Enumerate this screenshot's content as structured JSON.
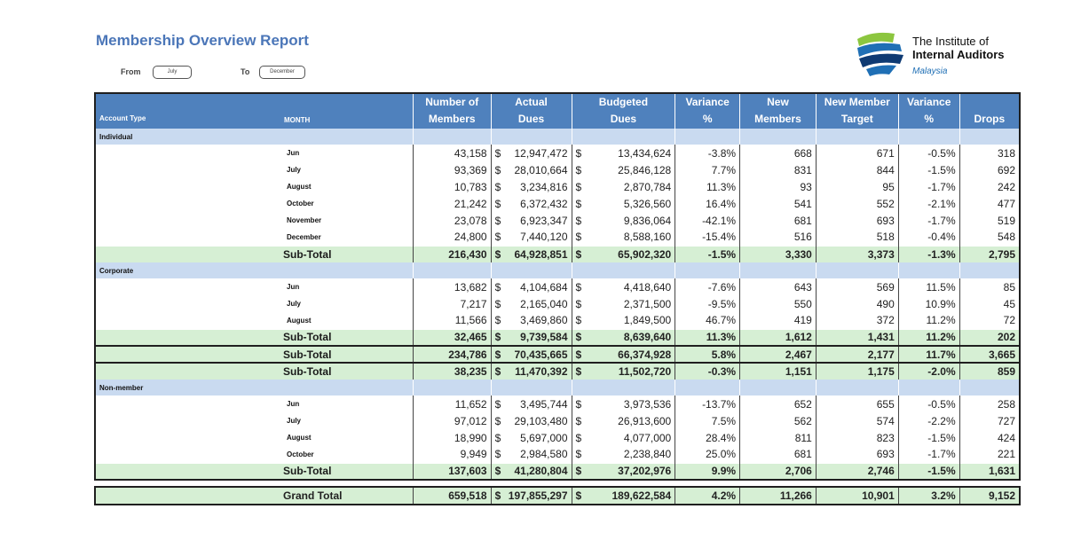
{
  "title": "Membership Overview Report",
  "filters": {
    "from_label": "From",
    "from_value": "July",
    "to_label": "To",
    "to_value": "December"
  },
  "logo": {
    "line1": "The Institute of",
    "line2": "Internal Auditors",
    "line3": "Malaysia",
    "colors": {
      "green": "#8cc63f",
      "blue": "#1f6fb5",
      "navy": "#0e3a73"
    }
  },
  "colors": {
    "header_bg": "#4f81bd",
    "section_bg": "#c9daf0",
    "subtotal_bg": "#d6efd4",
    "title": "#4b76b8"
  },
  "table": {
    "account_type_header": "Account Type",
    "month_header": "MONTH",
    "columns": [
      [
        "Number of",
        "Members"
      ],
      [
        "Actual",
        "Dues"
      ],
      [
        "Budgeted",
        "Dues"
      ],
      [
        "Variance",
        "%"
      ],
      [
        "New",
        "Members"
      ],
      [
        "New Member",
        "Target"
      ],
      [
        "Variance",
        "%"
      ],
      [
        "",
        "Drops"
      ]
    ],
    "currency_symbol": "$",
    "rows": [
      {
        "kind": "section",
        "label": "Individual"
      },
      {
        "kind": "data",
        "label": "Jun",
        "values": [
          "43,158",
          "12,947,472",
          "13,434,624",
          "-3.8%",
          "668",
          "671",
          "-0.5%",
          "318"
        ]
      },
      {
        "kind": "data",
        "label": "July",
        "values": [
          "93,369",
          "28,010,664",
          "25,846,128",
          "7.7%",
          "831",
          "844",
          "-1.5%",
          "692"
        ]
      },
      {
        "kind": "data",
        "label": "August",
        "values": [
          "10,783",
          "3,234,816",
          "2,870,784",
          "11.3%",
          "93",
          "95",
          "-1.7%",
          "242"
        ]
      },
      {
        "kind": "data",
        "label": "October",
        "values": [
          "21,242",
          "6,372,432",
          "5,326,560",
          "16.4%",
          "541",
          "552",
          "-2.1%",
          "477"
        ]
      },
      {
        "kind": "data",
        "label": "November",
        "values": [
          "23,078",
          "6,923,347",
          "9,836,064",
          "-42.1%",
          "681",
          "693",
          "-1.7%",
          "519"
        ]
      },
      {
        "kind": "data",
        "label": "December",
        "values": [
          "24,800",
          "7,440,120",
          "8,588,160",
          "-15.4%",
          "516",
          "518",
          "-0.4%",
          "548"
        ]
      },
      {
        "kind": "sub",
        "label": "Sub-Total",
        "values": [
          "216,430",
          "64,928,851",
          "65,902,320",
          "-1.5%",
          "3,330",
          "3,373",
          "-1.3%",
          "2,795"
        ]
      },
      {
        "kind": "section",
        "label": "Corporate"
      },
      {
        "kind": "data",
        "label": "Jun",
        "values": [
          "13,682",
          "4,104,684",
          "4,418,640",
          "-7.6%",
          "643",
          "569",
          "11.5%",
          "85"
        ]
      },
      {
        "kind": "data",
        "label": "July",
        "values": [
          "7,217",
          "2,165,040",
          "2,371,500",
          "-9.5%",
          "550",
          "490",
          "10.9%",
          "45"
        ]
      },
      {
        "kind": "data",
        "label": "August",
        "values": [
          "11,566",
          "3,469,860",
          "1,849,500",
          "46.7%",
          "419",
          "372",
          "11.2%",
          "72"
        ]
      },
      {
        "kind": "sub",
        "label": "Sub-Total",
        "values": [
          "32,465",
          "9,739,584",
          "8,639,640",
          "11.3%",
          "1,612",
          "1,431",
          "11.2%",
          "202"
        ]
      },
      {
        "kind": "sub",
        "boxed": true,
        "label": "Sub-Total",
        "values": [
          "234,786",
          "70,435,665",
          "66,374,928",
          "5.8%",
          "2,467",
          "2,177",
          "11.7%",
          "3,665"
        ]
      },
      {
        "kind": "sub",
        "boxed": true,
        "label": "Sub-Total",
        "values": [
          "38,235",
          "11,470,392",
          "11,502,720",
          "-0.3%",
          "1,151",
          "1,175",
          "-2.0%",
          "859"
        ]
      },
      {
        "kind": "section",
        "label": "Non-member"
      },
      {
        "kind": "data",
        "label": "Jun",
        "values": [
          "11,652",
          "3,495,744",
          "3,973,536",
          "-13.7%",
          "652",
          "655",
          "-0.5%",
          "258"
        ]
      },
      {
        "kind": "data",
        "label": "July",
        "values": [
          "97,012",
          "29,103,480",
          "26,913,600",
          "7.5%",
          "562",
          "574",
          "-2.2%",
          "727"
        ]
      },
      {
        "kind": "data",
        "label": "August",
        "values": [
          "18,990",
          "5,697,000",
          "4,077,000",
          "28.4%",
          "811",
          "823",
          "-1.5%",
          "424"
        ]
      },
      {
        "kind": "data",
        "label": "October",
        "values": [
          "9,949",
          "2,984,580",
          "2,238,840",
          "25.0%",
          "681",
          "693",
          "-1.7%",
          "221"
        ]
      },
      {
        "kind": "sub",
        "label": "Sub-Total",
        "values": [
          "137,603",
          "41,280,804",
          "37,202,976",
          "9.9%",
          "2,706",
          "2,746",
          "-1.5%",
          "1,631"
        ]
      },
      {
        "kind": "gap"
      },
      {
        "kind": "grand",
        "label": "Grand Total",
        "values": [
          "659,518",
          "197,855,297",
          "189,622,584",
          "4.2%",
          "11,266",
          "10,901",
          "3.2%",
          "9,152"
        ]
      }
    ]
  }
}
